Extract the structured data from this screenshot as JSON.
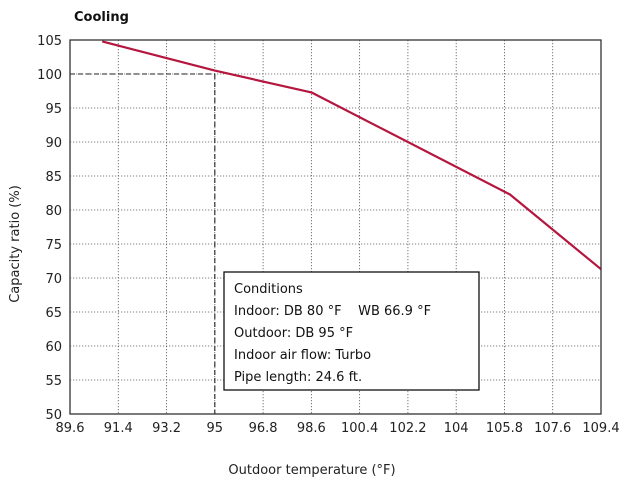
{
  "chart_data": {
    "type": "line",
    "title": "Cooling",
    "xlabel": "Outdoor temperature (°F)",
    "ylabel": "Capacity ratio (%)",
    "xlim": [
      89.6,
      109.4
    ],
    "ylim": [
      50,
      105
    ],
    "x_ticks": [
      "89.6",
      "91.4",
      "93.2",
      "95",
      "96.8",
      "98.6",
      "100.4",
      "102.2",
      "104",
      "105.8",
      "107.6",
      "109.4"
    ],
    "y_ticks": [
      "50",
      "55",
      "60",
      "65",
      "70",
      "75",
      "80",
      "85",
      "90",
      "95",
      "100",
      "105"
    ],
    "grid": true,
    "series": [
      {
        "color": "#b5163e",
        "points": [
          {
            "x": 90.8,
            "y": 104.8
          },
          {
            "x": 95,
            "y": 100.5
          },
          {
            "x": 98.6,
            "y": 97.3
          },
          {
            "x": 106,
            "y": 82.3
          },
          {
            "x": 109.4,
            "y": 71.3
          }
        ]
      }
    ],
    "reference_lines": {
      "x": 95,
      "y": 100
    },
    "conditions_box": {
      "lines": [
        "Conditions",
        "Indoor: DB 80 °F    WB 66.9 °F",
        "Outdoor: DB 95 °F",
        "Indoor air flow: Turbo",
        "Pipe length: 24.6 ft."
      ]
    }
  }
}
